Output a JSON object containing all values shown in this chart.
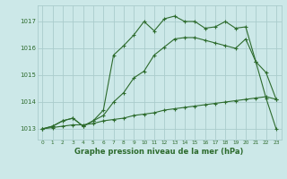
{
  "bg_color": "#cce8e8",
  "grid_color": "#aacccc",
  "line_color": "#2d6b2d",
  "title": "Graphe pression niveau de la mer (hPa)",
  "xlim": [
    -0.5,
    23.5
  ],
  "ylim": [
    1012.6,
    1017.6
  ],
  "yticks": [
    1013,
    1014,
    1015,
    1016,
    1017
  ],
  "xticks": [
    0,
    1,
    2,
    3,
    4,
    5,
    6,
    7,
    8,
    9,
    10,
    11,
    12,
    13,
    14,
    15,
    16,
    17,
    18,
    19,
    20,
    21,
    22,
    23
  ],
  "line1_x": [
    0,
    1,
    2,
    3,
    4,
    5,
    6,
    7,
    8,
    9,
    10,
    11,
    12,
    13,
    14,
    15,
    16,
    17,
    18,
    19,
    20,
    21,
    22,
    23
  ],
  "line1_y": [
    1013.0,
    1013.05,
    1013.1,
    1013.15,
    1013.15,
    1013.2,
    1013.3,
    1013.35,
    1013.4,
    1013.5,
    1013.55,
    1013.6,
    1013.7,
    1013.75,
    1013.8,
    1013.85,
    1013.9,
    1013.95,
    1014.0,
    1014.05,
    1014.1,
    1014.15,
    1014.2,
    1014.1
  ],
  "line2_x": [
    0,
    1,
    2,
    3,
    4,
    5,
    6,
    7,
    8,
    9,
    10,
    11,
    12,
    13,
    14,
    15,
    16,
    17,
    18,
    19,
    20,
    21,
    22,
    23
  ],
  "line2_y": [
    1013.0,
    1013.1,
    1013.3,
    1013.4,
    1013.1,
    1013.3,
    1013.5,
    1014.0,
    1014.35,
    1014.9,
    1015.15,
    1015.75,
    1016.05,
    1016.35,
    1016.4,
    1016.4,
    1016.3,
    1016.2,
    1016.1,
    1016.0,
    1016.35,
    1015.5,
    1015.1,
    1014.1
  ],
  "line3_x": [
    0,
    1,
    2,
    3,
    4,
    5,
    6,
    7,
    8,
    9,
    10,
    11,
    12,
    13,
    14,
    15,
    16,
    17,
    18,
    19,
    20,
    21,
    22,
    23
  ],
  "line3_y": [
    1013.0,
    1013.1,
    1013.3,
    1013.4,
    1013.1,
    1013.3,
    1013.7,
    1015.75,
    1016.1,
    1016.5,
    1017.0,
    1016.65,
    1017.1,
    1017.2,
    1017.0,
    1017.0,
    1016.75,
    1016.8,
    1017.0,
    1016.75,
    1016.8,
    1015.5,
    1014.15,
    1013.0
  ]
}
